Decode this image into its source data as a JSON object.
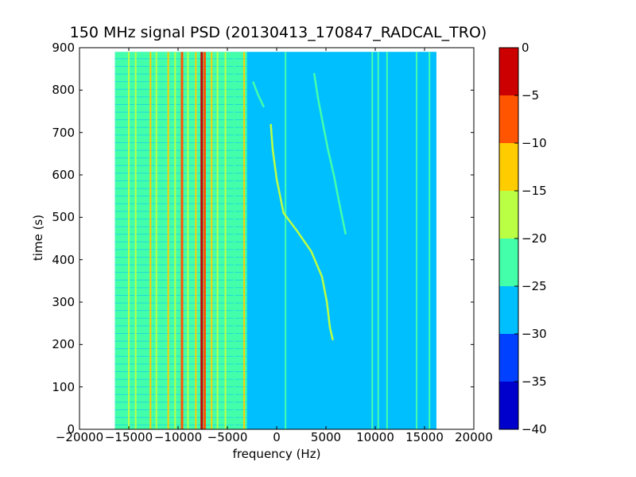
{
  "chart_data": {
    "type": "heatmap",
    "title": "150 MHz signal PSD (20130413_170847_RADCAL_TRO)",
    "xlabel": "frequency (Hz)",
    "ylabel": "time (s)",
    "xlim": [
      -20000,
      20000
    ],
    "ylim": [
      0,
      900
    ],
    "xticks": [
      "−20000",
      "−15000",
      "−10000",
      "−5000",
      "0",
      "5000",
      "10000",
      "15000",
      "20000"
    ],
    "xtick_values": [
      -20000,
      -15000,
      -10000,
      -5000,
      0,
      5000,
      10000,
      15000,
      20000
    ],
    "yticks": [
      "0",
      "100",
      "200",
      "300",
      "400",
      "500",
      "600",
      "700",
      "800",
      "900"
    ],
    "ytick_values": [
      0,
      100,
      200,
      300,
      400,
      500,
      600,
      700,
      800,
      900
    ],
    "data_extent": {
      "freq_hz": [
        -16400,
        16200
      ],
      "time_s": [
        0,
        890
      ]
    },
    "colorbar": {
      "levels": [
        -40,
        -35,
        -30,
        -25,
        -20,
        -15,
        -10,
        -5,
        0
      ],
      "tick_labels": [
        "−40",
        "−35",
        "−30",
        "−25",
        "−20",
        "−15",
        "−10",
        "−5",
        "0"
      ],
      "colors": [
        "#0000cc",
        "#0040ff",
        "#00bfff",
        "#44ffaa",
        "#bbff44",
        "#ffcc00",
        "#ff5500",
        "#cc0000"
      ]
    },
    "background_level_db": -27.5,
    "bands": [
      {
        "f_start": -16400,
        "f_end": -3000,
        "level_db": -22.5
      },
      {
        "f_start": -3000,
        "f_end": 16200,
        "level_db": -27.5
      }
    ],
    "lines": [
      {
        "freq_hz": -15000,
        "level_db": -17.5
      },
      {
        "freq_hz": -14300,
        "level_db": -17.5
      },
      {
        "freq_hz": -12800,
        "level_db": -12.5
      },
      {
        "freq_hz": -12200,
        "level_db": -17.5
      },
      {
        "freq_hz": -11000,
        "level_db": -12.5
      },
      {
        "freq_hz": -10300,
        "level_db": -17.5
      },
      {
        "freq_hz": -9600,
        "level_db": -7.5
      },
      {
        "freq_hz": -9000,
        "level_db": -17.5
      },
      {
        "freq_hz": -8200,
        "level_db": -12.5
      },
      {
        "freq_hz": -7600,
        "level_db": -2.5
      },
      {
        "freq_hz": -7300,
        "level_db": -7.5
      },
      {
        "freq_hz": -6600,
        "level_db": -12.5
      },
      {
        "freq_hz": -6000,
        "level_db": -17.5
      },
      {
        "freq_hz": -5200,
        "level_db": -17.5
      },
      {
        "freq_hz": -4300,
        "level_db": -22.5
      },
      {
        "freq_hz": -3300,
        "level_db": -12.5
      },
      {
        "freq_hz": 900,
        "level_db": -22.5
      },
      {
        "freq_hz": 9700,
        "level_db": -22.5
      },
      {
        "freq_hz": 10300,
        "level_db": -22.5
      },
      {
        "freq_hz": 11200,
        "level_db": -22.5
      },
      {
        "freq_hz": 14200,
        "level_db": -22.5
      },
      {
        "freq_hz": 15500,
        "level_db": -22.5
      }
    ],
    "sweeps": [
      {
        "level_db": -17.5,
        "points": [
          [
            -600,
            720
          ],
          [
            -400,
            660
          ],
          [
            0,
            590
          ],
          [
            700,
            510
          ],
          [
            2000,
            470
          ],
          [
            3500,
            420
          ],
          [
            4600,
            360
          ],
          [
            5100,
            300
          ],
          [
            5400,
            240
          ],
          [
            5700,
            210
          ]
        ]
      },
      {
        "level_db": -22.5,
        "points": [
          [
            3800,
            840
          ],
          [
            4200,
            780
          ],
          [
            4700,
            720
          ],
          [
            5200,
            660
          ],
          [
            5800,
            600
          ],
          [
            6300,
            540
          ],
          [
            7000,
            460
          ]
        ]
      },
      {
        "level_db": -22.5,
        "points": [
          [
            -2400,
            820
          ],
          [
            -1900,
            790
          ],
          [
            -1300,
            760
          ]
        ]
      }
    ]
  }
}
